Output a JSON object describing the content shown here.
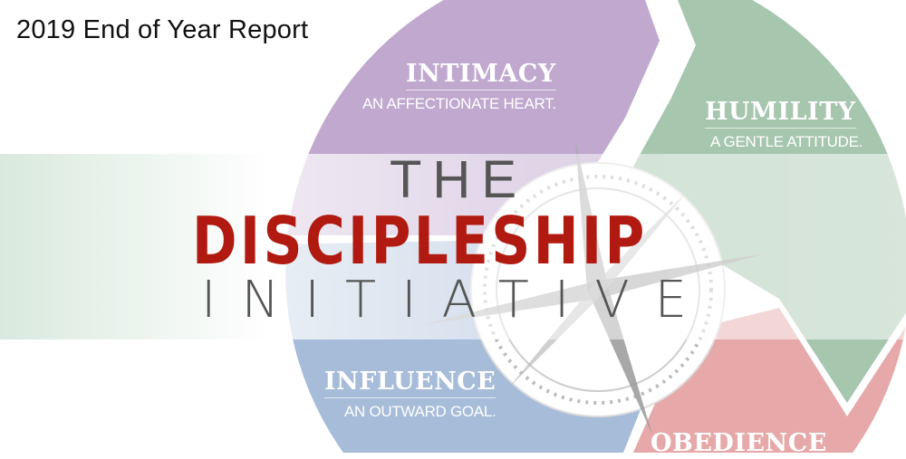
{
  "report_title": "2019 End of Year Report",
  "logo": {
    "line1": "THE",
    "line2": "DISCIPLESHIP",
    "line3": "INITIATIVE",
    "accent_color": "#b01a10",
    "text_color": "#555555"
  },
  "segments": [
    {
      "title": "INTIMACY",
      "subtitle": "AN AFFECTIONATE HEART.",
      "color": "#c0a8cf"
    },
    {
      "title": "HUMILITY",
      "subtitle": "A GENTLE ATTITUDE.",
      "color": "#a6c6ae"
    },
    {
      "title": "INFLUENCE",
      "subtitle": "AN OUTWARD GOAL.",
      "color": "#a6bcd8"
    },
    {
      "title": "OBEDIENCE",
      "subtitle": "",
      "color": "#e6a8a8"
    }
  ],
  "center_icon": "compass-icon"
}
